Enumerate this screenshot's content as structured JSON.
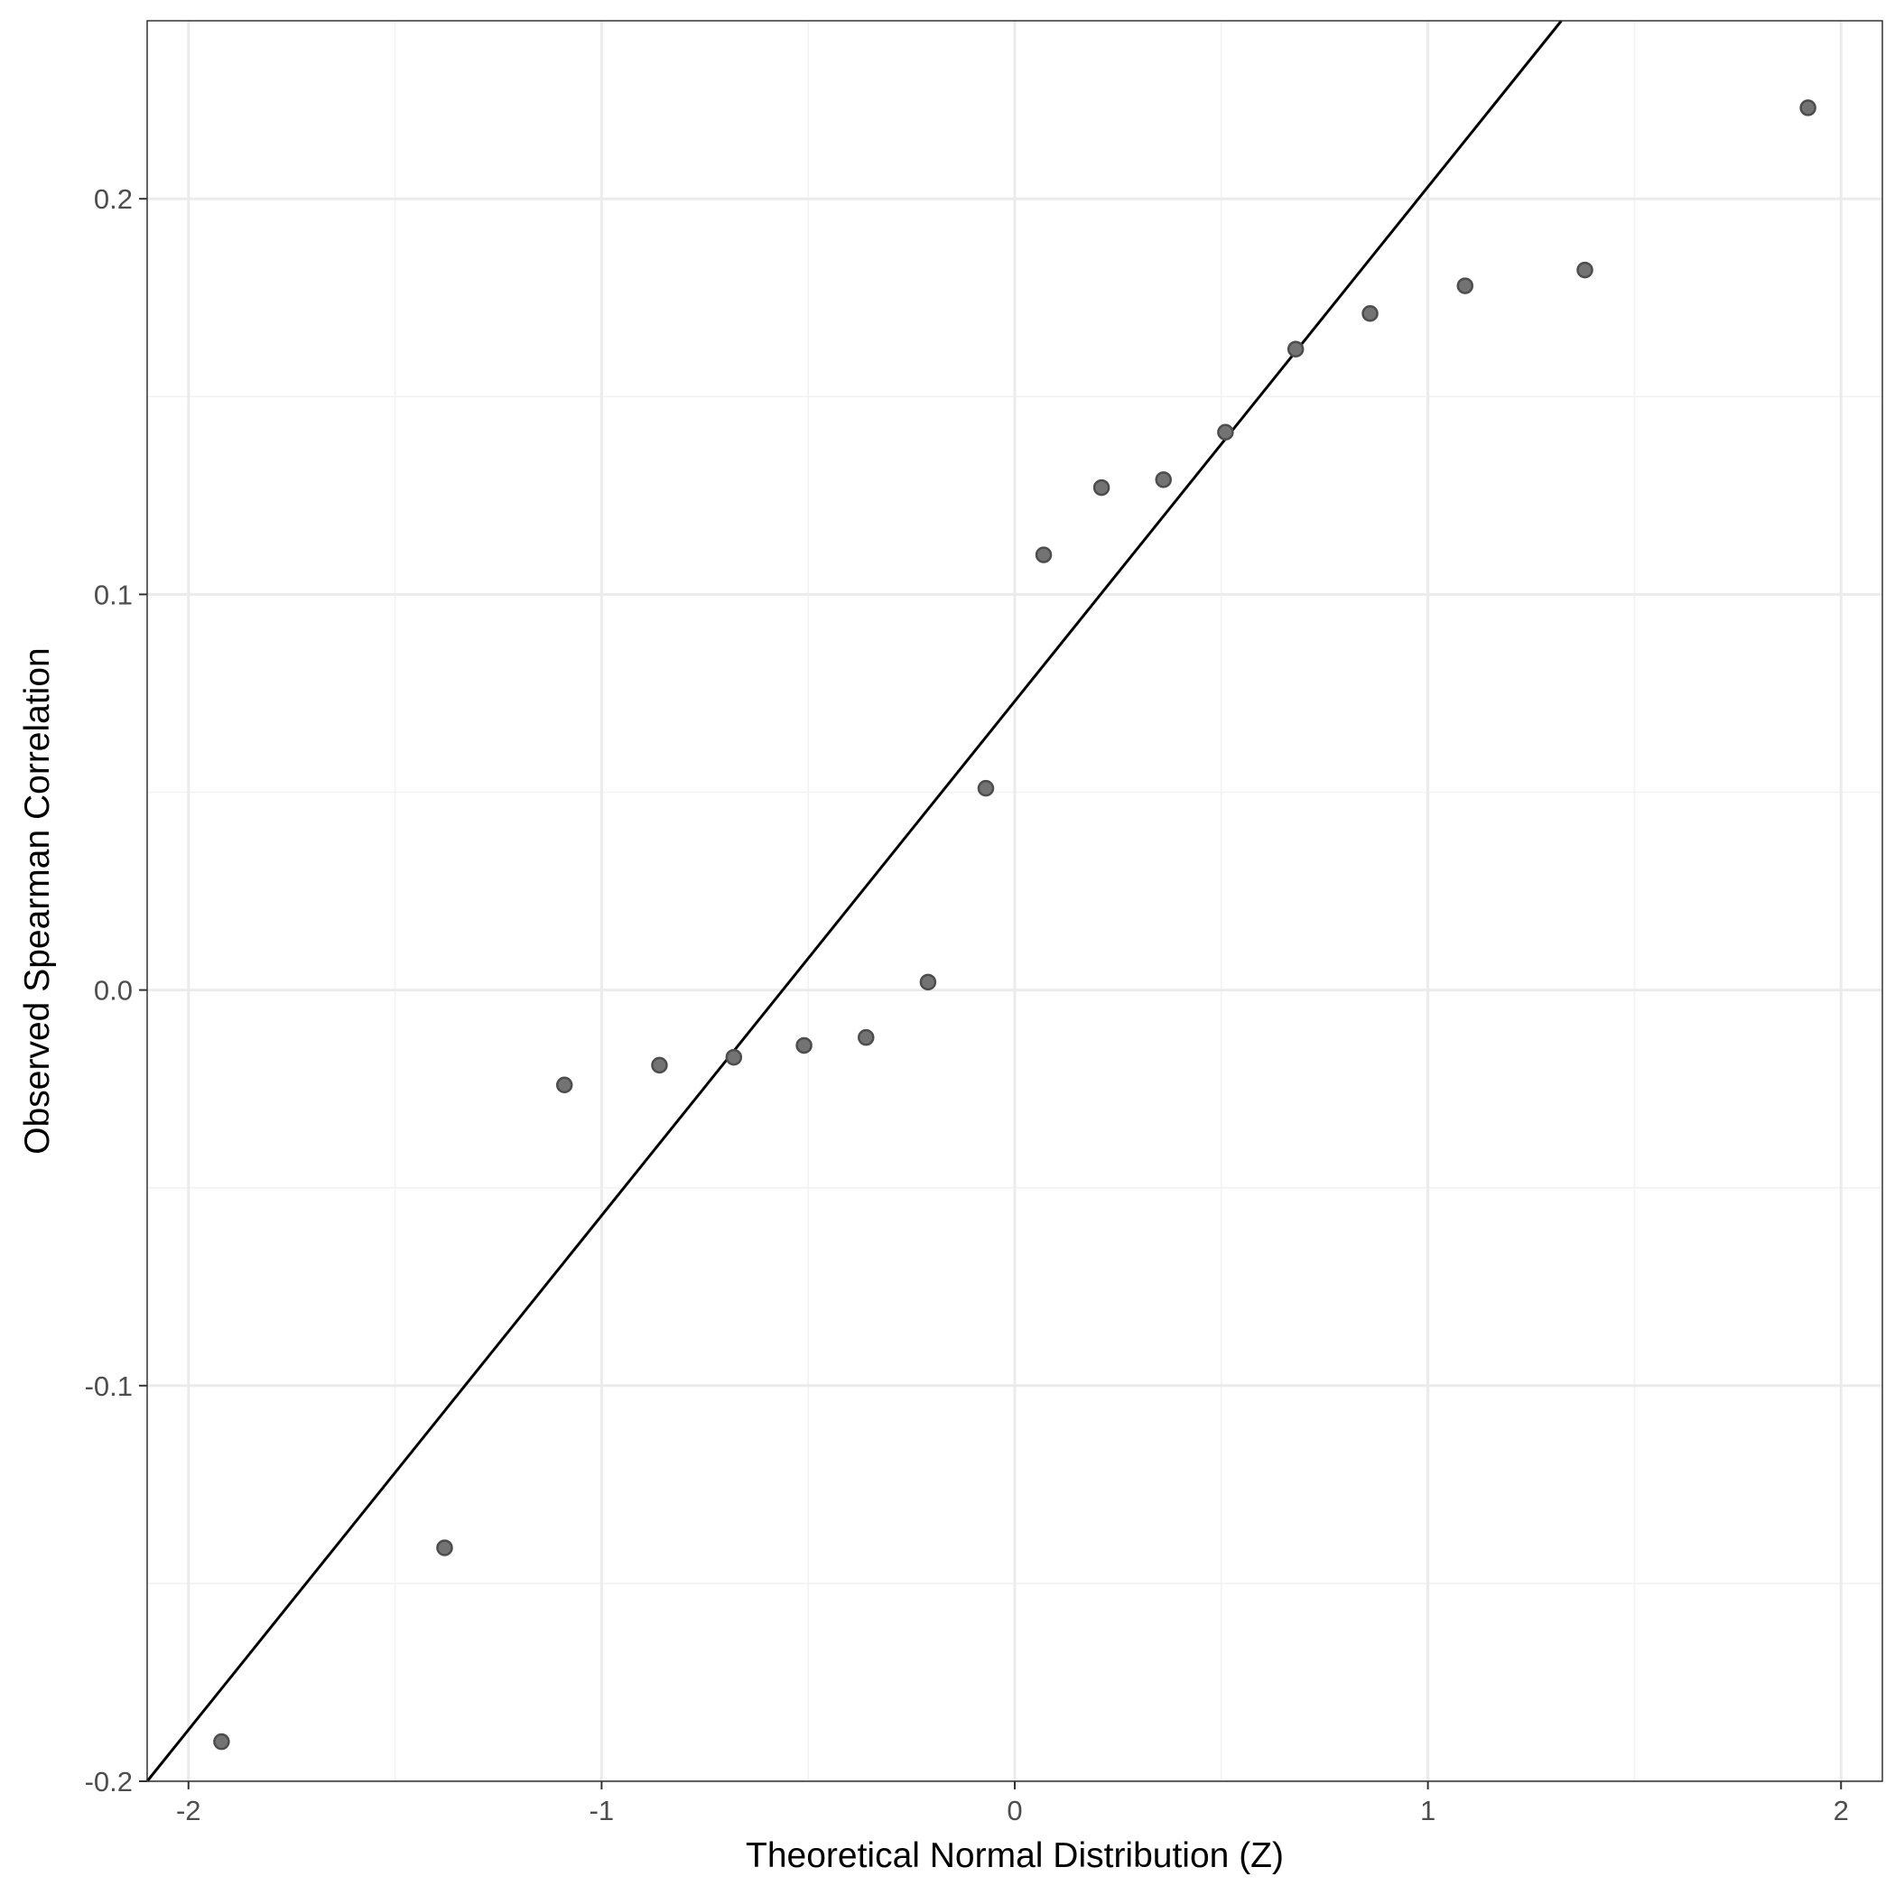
{
  "chart_data": {
    "type": "scatter",
    "title": "",
    "xlabel": "Theoretical Normal Distribution (Z)",
    "ylabel": "Observed Spearman Correlation",
    "xlim": [
      -2.1,
      2.1
    ],
    "ylim": [
      -0.2,
      0.245
    ],
    "x_ticks": [
      -2,
      -1,
      0,
      1,
      2
    ],
    "x_tick_labels": [
      "-2",
      "-1",
      "0",
      "1",
      "2"
    ],
    "y_ticks": [
      -0.2,
      -0.1,
      0.0,
      0.1,
      0.2
    ],
    "y_tick_labels": [
      "-0.2",
      "-0.1",
      "0.0",
      "0.1",
      "0.2"
    ],
    "x_minor_ticks": [
      -1.5,
      -0.5,
      0.5,
      1.5
    ],
    "y_minor_ticks": [
      -0.15,
      -0.05,
      0.05,
      0.15
    ],
    "grid": true,
    "legend": "none",
    "point_color": "#4d4d4d",
    "point_fill": "#737373",
    "line_color": "#000000",
    "grid_major_color": "#ebebeb",
    "grid_minor_color": "#f2f2f2",
    "reference_line": {
      "slope": 0.13,
      "intercept": 0.073
    },
    "series": [
      {
        "x": [
          -1.92,
          -1.38,
          -1.09,
          -0.86,
          -0.68,
          -0.51,
          -0.36,
          -0.21,
          -0.07,
          0.07,
          0.21,
          0.36,
          0.51,
          0.68,
          0.86,
          1.09,
          1.38,
          1.92
        ],
        "y": [
          -0.19,
          -0.141,
          -0.024,
          -0.019,
          -0.017,
          -0.014,
          -0.012,
          0.002,
          0.051,
          0.11,
          0.127,
          0.129,
          0.141,
          0.162,
          0.171,
          0.178,
          0.182,
          0.223
        ]
      }
    ]
  }
}
